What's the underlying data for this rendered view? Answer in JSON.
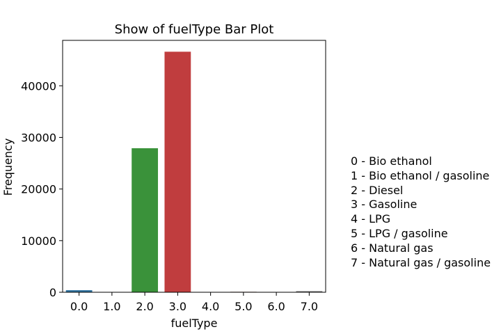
{
  "chart_data": {
    "type": "bar",
    "title": "Show of fuelType Bar Plot",
    "xlabel": "fuelType",
    "ylabel": "Frequency",
    "categories": [
      "0.0",
      "1.0",
      "2.0",
      "3.0",
      "4.0",
      "5.0",
      "6.0",
      "7.0"
    ],
    "values": [
      400,
      60,
      27900,
      46600,
      60,
      90,
      40,
      220
    ],
    "colors": [
      "#3274a1",
      "#e1812c",
      "#3a923a",
      "#c03d3e",
      "#9372b2",
      "#845b53",
      "#d684bd",
      "#7f7f7f"
    ],
    "ylim": [
      0,
      48800
    ],
    "yticks": [
      0,
      10000,
      20000,
      30000,
      40000
    ],
    "ytick_labels": [
      "0",
      "10000",
      "20000",
      "30000",
      "40000"
    ],
    "grid": false,
    "legend_placement": "right",
    "legend_text": [
      "0 - Bio ethanol",
      "1 - Bio ethanol / gasoline",
      "2 - Diesel",
      "3 - Gasoline",
      "4 - LPG",
      "5 - LPG / gasoline",
      "6 - Natural gas",
      "7 - Natural gas / gasoline"
    ]
  }
}
